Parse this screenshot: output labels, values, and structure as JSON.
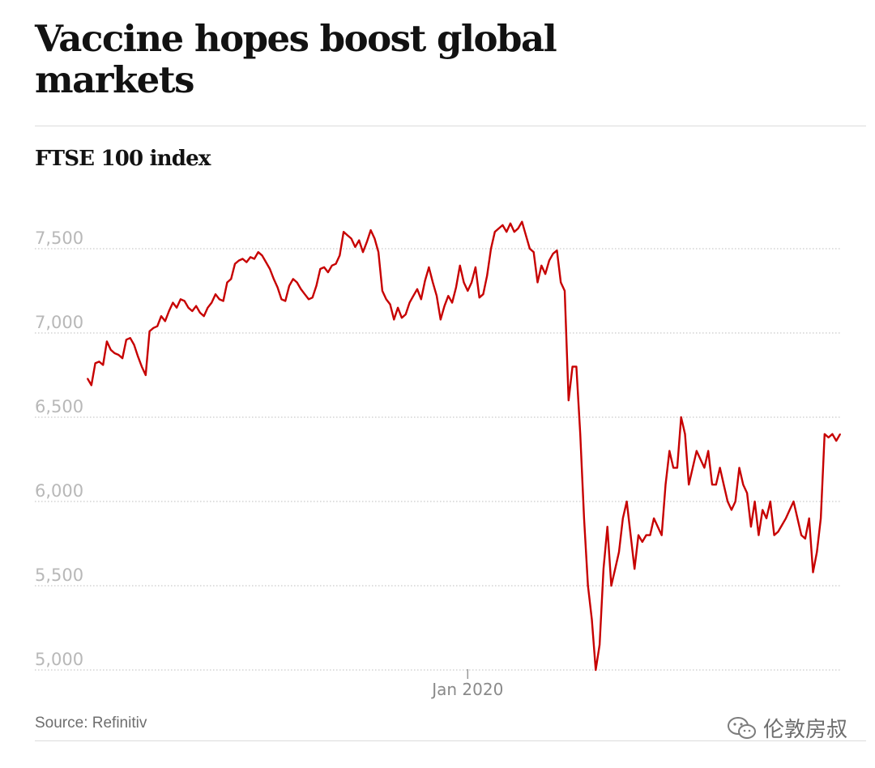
{
  "title": "Vaccine hopes boost global markets",
  "chart_data": {
    "type": "line",
    "title": "FTSE 100 index",
    "xlabel": "",
    "ylabel": "",
    "ylim": [
      5000,
      7700
    ],
    "yticks": [
      7500,
      7000,
      6500,
      6000,
      5500,
      5000
    ],
    "ytick_labels": [
      "7,500",
      "7,000",
      "6,500",
      "6,000",
      "5,500",
      "5,000"
    ],
    "xtick_label": "Jan 2020",
    "xtick_index": 98,
    "grid": true,
    "series": [
      {
        "name": "FTSE 100",
        "color": "#c70000",
        "values": [
          6730,
          6690,
          6820,
          6830,
          6810,
          6950,
          6900,
          6880,
          6870,
          6850,
          6960,
          6970,
          6930,
          6860,
          6800,
          6750,
          7010,
          7030,
          7040,
          7100,
          7070,
          7130,
          7180,
          7150,
          7200,
          7190,
          7150,
          7130,
          7160,
          7120,
          7100,
          7150,
          7180,
          7230,
          7200,
          7190,
          7300,
          7320,
          7410,
          7430,
          7440,
          7420,
          7450,
          7440,
          7480,
          7460,
          7420,
          7380,
          7320,
          7270,
          7200,
          7190,
          7280,
          7320,
          7300,
          7260,
          7230,
          7200,
          7210,
          7280,
          7380,
          7390,
          7360,
          7400,
          7410,
          7460,
          7600,
          7580,
          7560,
          7510,
          7550,
          7480,
          7540,
          7610,
          7560,
          7480,
          7250,
          7200,
          7170,
          7080,
          7150,
          7090,
          7110,
          7180,
          7220,
          7260,
          7200,
          7310,
          7390,
          7300,
          7220,
          7080,
          7160,
          7220,
          7180,
          7270,
          7400,
          7300,
          7250,
          7300,
          7390,
          7210,
          7230,
          7340,
          7500,
          7600,
          7620,
          7640,
          7600,
          7650,
          7600,
          7620,
          7660,
          7580,
          7500,
          7480,
          7300,
          7400,
          7350,
          7430,
          7470,
          7490,
          7300,
          7250,
          6600,
          6800,
          6800,
          6400,
          5900,
          5500,
          5300,
          5000,
          5150,
          5600,
          5850,
          5500,
          5600,
          5700,
          5900,
          6000,
          5800,
          5600,
          5800,
          5760,
          5800,
          5800,
          5900,
          5850,
          5800,
          6100,
          6300,
          6200,
          6200,
          6500,
          6400,
          6100,
          6200,
          6300,
          6250,
          6200,
          6300,
          6100,
          6100,
          6200,
          6100,
          6000,
          5950,
          6000,
          6200,
          6100,
          6050,
          5850,
          6000,
          5800,
          5950,
          5900,
          6000,
          5800,
          5820,
          5860,
          5900,
          5950,
          6000,
          5900,
          5800,
          5780,
          5900,
          5580,
          5700,
          5900,
          6400,
          6380,
          6400,
          6360,
          6400
        ]
      }
    ]
  },
  "source": "Source: Refinitiv",
  "watermark": {
    "icon": "wechat-icon",
    "text": "伦敦房叔"
  }
}
